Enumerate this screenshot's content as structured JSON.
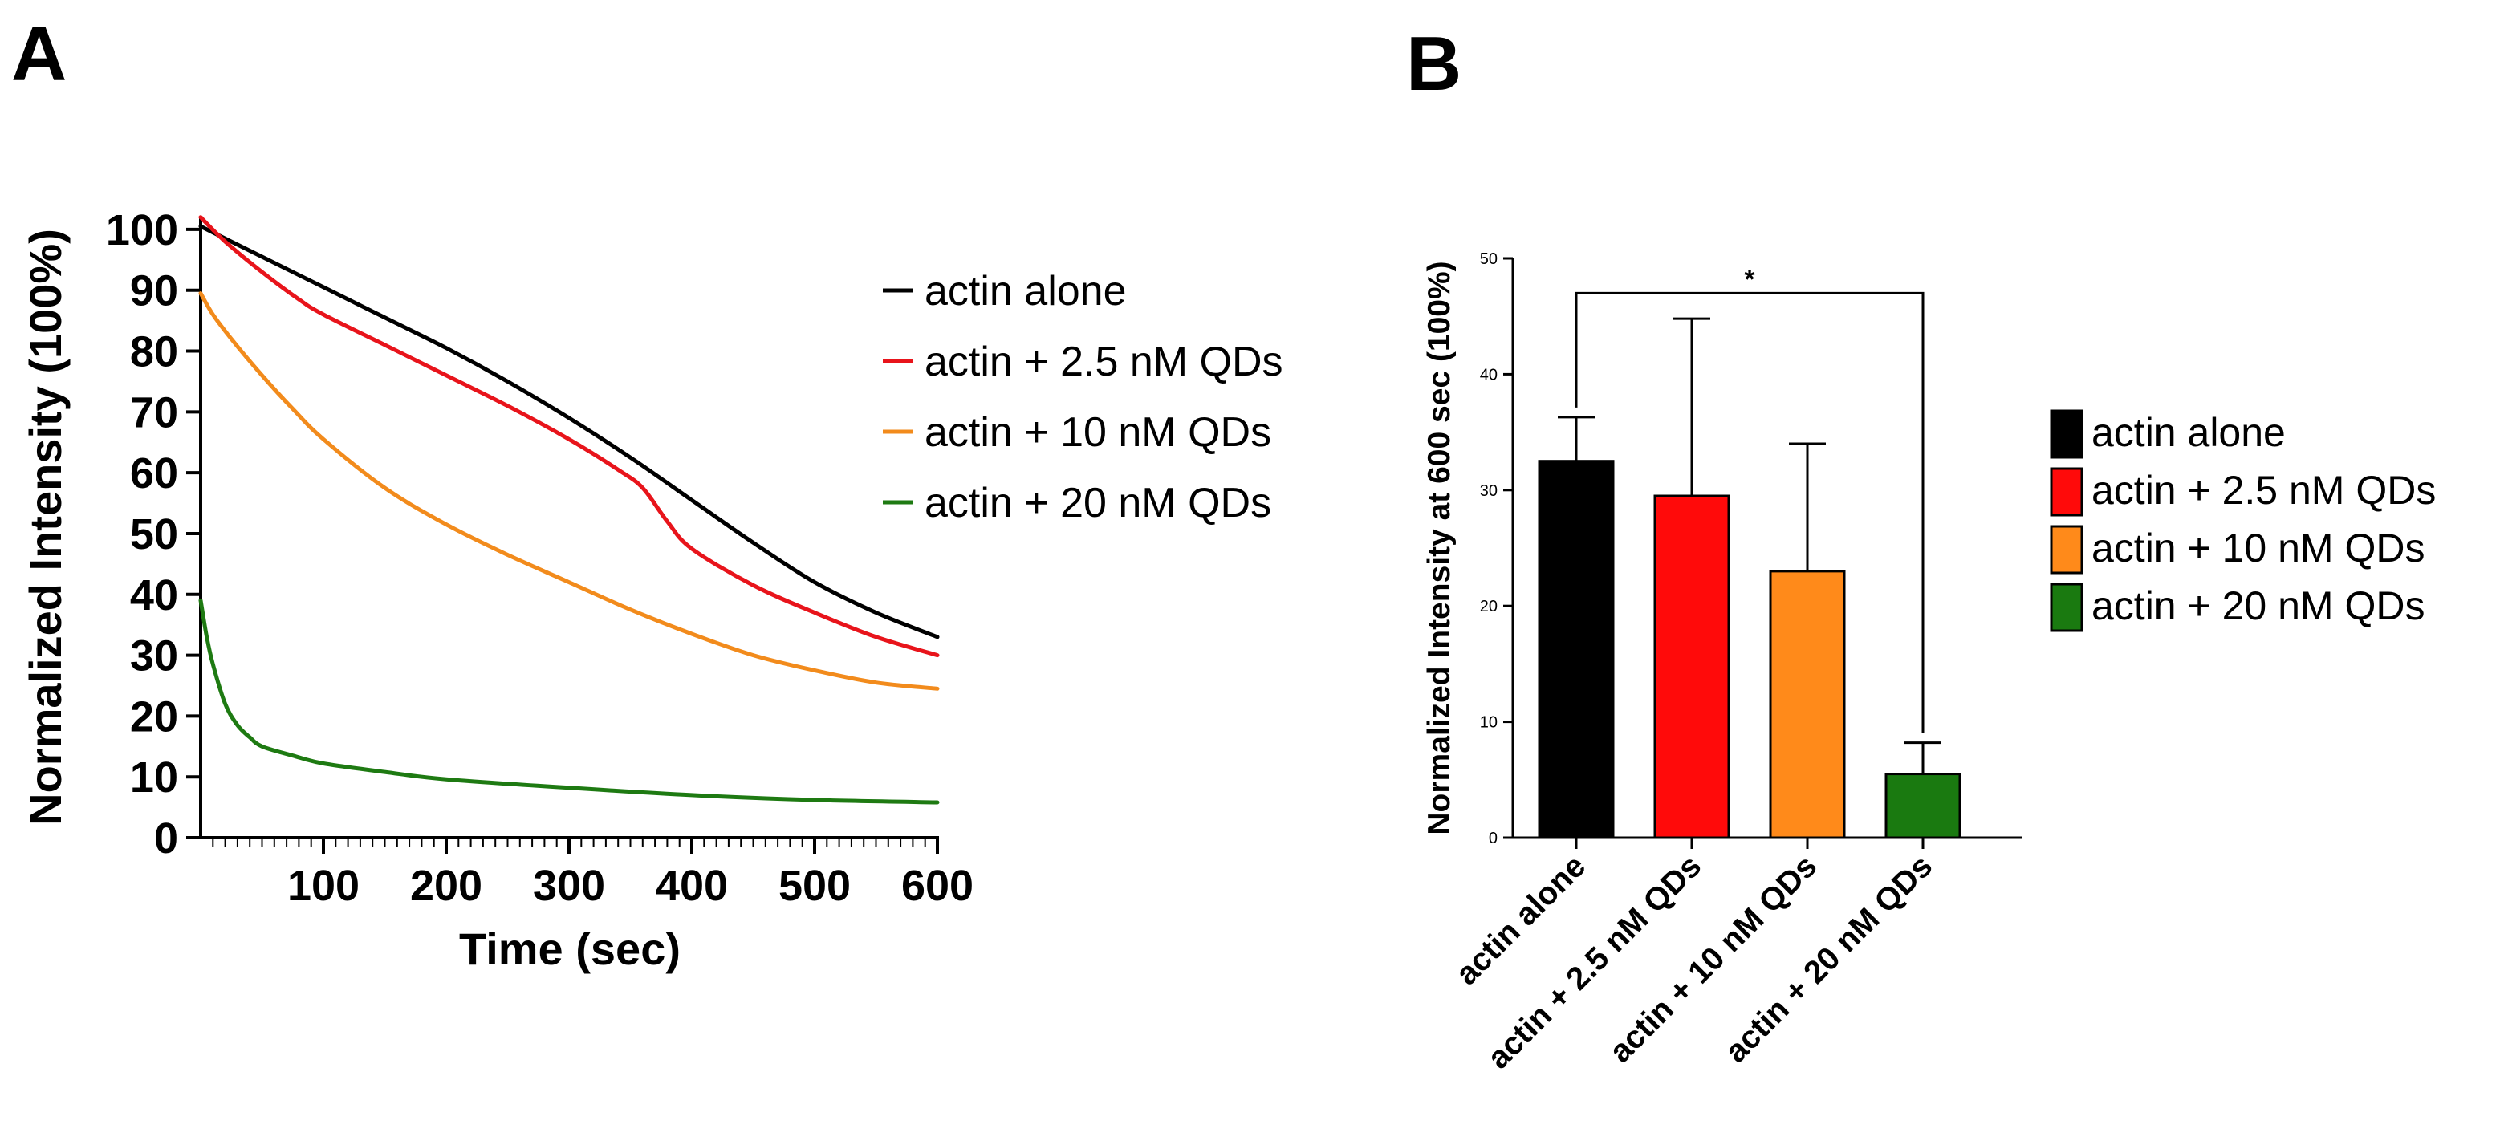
{
  "panels": {
    "a": {
      "label": "A"
    },
    "b": {
      "label": "B"
    }
  },
  "chart_data": [
    {
      "id": "panel-a",
      "type": "line",
      "title": "",
      "xlabel": "Time (sec)",
      "ylabel": "Normalized Intensity (100%)",
      "xlim": [
        0,
        600
      ],
      "ylim": [
        0,
        105
      ],
      "xticks": [
        100,
        200,
        300,
        400,
        500,
        600
      ],
      "xtick_labels": [
        "100",
        "200",
        "300",
        "400",
        "500",
        "600"
      ],
      "yticks": [
        0,
        10,
        20,
        30,
        40,
        50,
        60,
        70,
        80,
        90,
        100
      ],
      "ytick_labels": [
        "0",
        "10",
        "20",
        "30",
        "40",
        "50",
        "60",
        "70",
        "80",
        "90",
        "100"
      ],
      "grid": false,
      "legend_position": "right",
      "series": [
        {
          "name": "actin alone",
          "color": "#000000",
          "x": [
            0,
            20,
            50,
            100,
            150,
            200,
            250,
            300,
            350,
            400,
            450,
            500,
            550,
            600
          ],
          "y": [
            100.5,
            98.5,
            95.5,
            90.5,
            85.5,
            80.5,
            75.0,
            69.0,
            62.5,
            55.5,
            48.5,
            42.0,
            37.0,
            33.0
          ]
        },
        {
          "name": "actin + 2.5 nM QDs",
          "color": "#e8141b",
          "x": [
            0,
            20,
            50,
            80,
            100,
            150,
            200,
            250,
            300,
            340,
            360,
            380,
            400,
            450,
            500,
            550,
            600
          ],
          "y": [
            102,
            98,
            93,
            88.5,
            86,
            81,
            76,
            71,
            65.5,
            60.5,
            57.5,
            52,
            47.5,
            41.5,
            37,
            33,
            30
          ]
        },
        {
          "name": "actin + 10 nM QDs",
          "color": "#f28b1c",
          "x": [
            0,
            10,
            25,
            50,
            75,
            100,
            150,
            200,
            250,
            300,
            350,
            400,
            450,
            500,
            550,
            600
          ],
          "y": [
            89.5,
            86,
            82,
            76,
            70.5,
            65.5,
            57.5,
            51.5,
            46.5,
            42,
            37.5,
            33.5,
            30,
            27.5,
            25.5,
            24.5
          ]
        },
        {
          "name": "actin + 20 nM QDs",
          "color": "#1e7a12",
          "x": [
            0,
            5,
            10,
            20,
            30,
            40,
            50,
            75,
            100,
            150,
            200,
            300,
            400,
            500,
            600
          ],
          "y": [
            39,
            33,
            28.5,
            22,
            18.5,
            16.5,
            15,
            13.5,
            12.2,
            10.8,
            9.6,
            8.2,
            7,
            6.2,
            5.8
          ]
        }
      ]
    },
    {
      "id": "panel-b",
      "type": "bar",
      "title": "",
      "xlabel": "",
      "ylabel": "Normalized Intensity at 600 sec (100%)",
      "ylim": [
        0,
        50
      ],
      "yticks": [
        0,
        10,
        20,
        30,
        40,
        50
      ],
      "ytick_labels": [
        "0",
        "10",
        "20",
        "30",
        "40",
        "50"
      ],
      "grid": false,
      "legend_position": "right",
      "categories": [
        "actin alone",
        "actin + 2.5 nM QDs",
        "actin + 10 nM QDs",
        "actin + 20 nM QDs"
      ],
      "values": [
        32.5,
        29.5,
        23,
        5.5
      ],
      "error": [
        3.8,
        15.3,
        11,
        2.7
      ],
      "colors": [
        "#000000",
        "#ff0a0a",
        "#ff8a1a",
        "#1a7a10"
      ],
      "significance": {
        "from": 0,
        "to": 3,
        "label": "*",
        "y": 47
      },
      "legend": [
        "actin alone",
        "actin + 2.5 nM QDs",
        "actin + 10 nM QDs",
        "actin + 20 nM QDs"
      ]
    }
  ]
}
